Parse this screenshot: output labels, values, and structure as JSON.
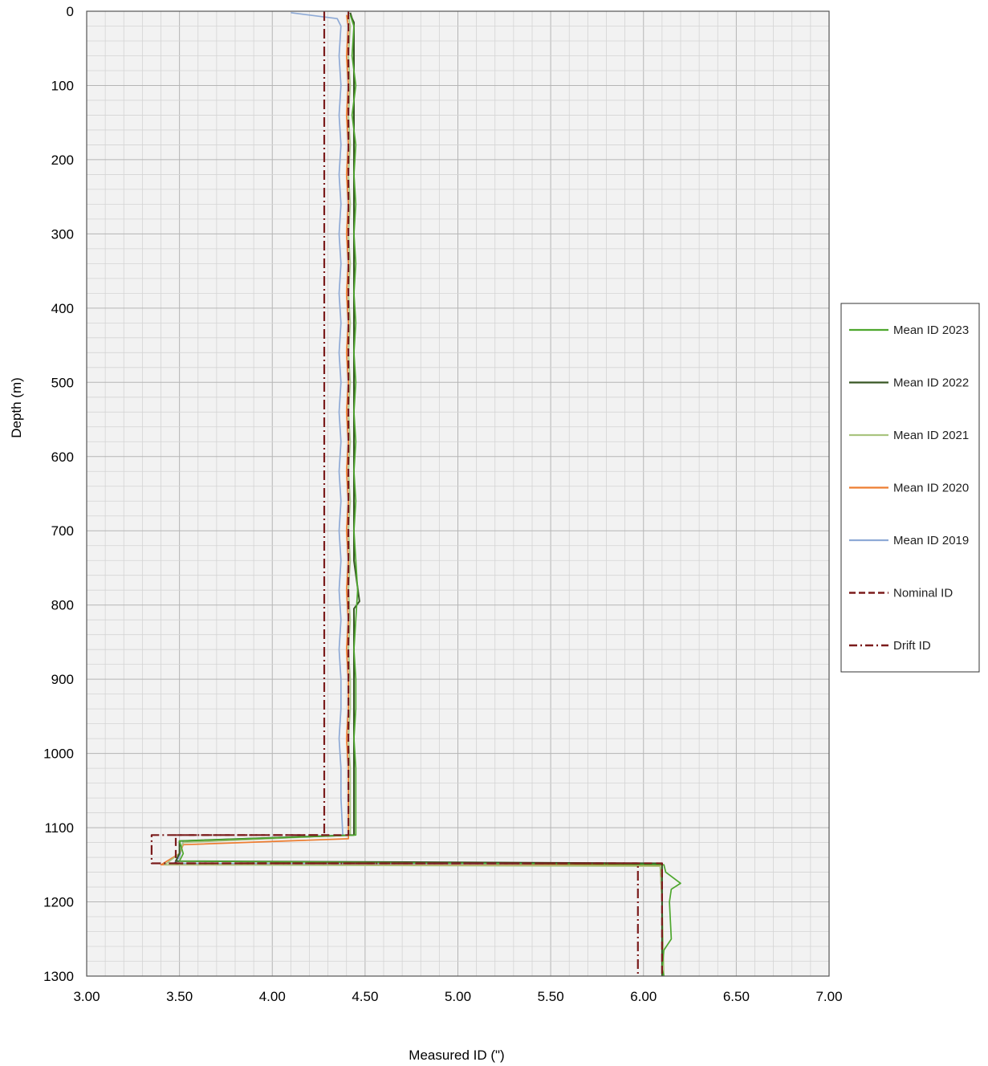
{
  "chart_data": {
    "type": "line",
    "title": "",
    "xlabel": "Measured ID (\")",
    "ylabel": "Depth (m)",
    "xlim": [
      3.0,
      7.0
    ],
    "ylim": [
      0,
      1300
    ],
    "y_inverted": true,
    "grid": true,
    "legend_position": "right",
    "x_ticks": [
      "3.00",
      "3.50",
      "4.00",
      "4.50",
      "5.00",
      "5.50",
      "6.00",
      "6.50",
      "7.00"
    ],
    "y_ticks": [
      "0",
      "100",
      "200",
      "300",
      "400",
      "500",
      "600",
      "700",
      "800",
      "900",
      "1000",
      "1100",
      "1200",
      "1300"
    ],
    "series": [
      {
        "name": "Mean ID 2023",
        "color": "#4ea72e",
        "style": "solid",
        "points": [
          [
            4.42,
            5
          ],
          [
            4.44,
            20
          ],
          [
            4.43,
            60
          ],
          [
            4.45,
            100
          ],
          [
            4.43,
            140
          ],
          [
            4.45,
            180
          ],
          [
            4.44,
            220
          ],
          [
            4.45,
            260
          ],
          [
            4.44,
            300
          ],
          [
            4.45,
            340
          ],
          [
            4.44,
            380
          ],
          [
            4.45,
            420
          ],
          [
            4.44,
            460
          ],
          [
            4.45,
            500
          ],
          [
            4.44,
            540
          ],
          [
            4.45,
            580
          ],
          [
            4.44,
            620
          ],
          [
            4.45,
            660
          ],
          [
            4.44,
            700
          ],
          [
            4.45,
            740
          ],
          [
            4.46,
            780
          ],
          [
            4.45,
            820
          ],
          [
            4.44,
            860
          ],
          [
            4.45,
            900
          ],
          [
            4.45,
            940
          ],
          [
            4.44,
            980
          ],
          [
            4.45,
            1020
          ],
          [
            4.45,
            1060
          ],
          [
            4.45,
            1110
          ],
          [
            3.5,
            1118
          ],
          [
            3.52,
            1135
          ],
          [
            3.5,
            1145
          ],
          [
            6.11,
            1150
          ],
          [
            6.12,
            1160
          ],
          [
            6.2,
            1175
          ],
          [
            6.15,
            1183
          ],
          [
            6.14,
            1200
          ],
          [
            6.15,
            1250
          ],
          [
            6.11,
            1265
          ],
          [
            6.1,
            1290
          ],
          [
            6.11,
            1300
          ]
        ]
      },
      {
        "name": "Mean ID 2022",
        "color": "#375623",
        "style": "solid",
        "points": [
          [
            4.42,
            2
          ],
          [
            4.43,
            10
          ],
          [
            4.44,
            15
          ],
          [
            4.44,
            60
          ],
          [
            4.44,
            100
          ],
          [
            4.44,
            140
          ],
          [
            4.44,
            180
          ],
          [
            4.44,
            220
          ],
          [
            4.44,
            260
          ],
          [
            4.44,
            300
          ],
          [
            4.44,
            340
          ],
          [
            4.44,
            380
          ],
          [
            4.44,
            420
          ],
          [
            4.44,
            460
          ],
          [
            4.44,
            500
          ],
          [
            4.44,
            540
          ],
          [
            4.44,
            580
          ],
          [
            4.44,
            620
          ],
          [
            4.44,
            660
          ],
          [
            4.44,
            700
          ],
          [
            4.44,
            740
          ],
          [
            4.47,
            795
          ],
          [
            4.44,
            805
          ],
          [
            4.44,
            860
          ],
          [
            4.44,
            900
          ],
          [
            4.44,
            940
          ],
          [
            4.44,
            980
          ],
          [
            4.44,
            1020
          ],
          [
            4.44,
            1060
          ],
          [
            4.44,
            1110
          ],
          [
            3.5,
            1118
          ],
          [
            3.5,
            1135
          ],
          [
            3.48,
            1145
          ],
          [
            6.1,
            1148
          ],
          [
            6.1,
            1200
          ],
          [
            6.1,
            1300
          ]
        ]
      },
      {
        "name": "Mean ID 2021",
        "color": "#a9c47f",
        "style": "solid",
        "points": [
          [
            4.41,
            5
          ],
          [
            4.42,
            20
          ],
          [
            4.41,
            60
          ],
          [
            4.42,
            100
          ],
          [
            4.41,
            140
          ],
          [
            4.42,
            180
          ],
          [
            4.41,
            220
          ],
          [
            4.42,
            260
          ],
          [
            4.41,
            300
          ],
          [
            4.42,
            340
          ],
          [
            4.41,
            380
          ],
          [
            4.42,
            420
          ],
          [
            4.41,
            460
          ],
          [
            4.42,
            500
          ],
          [
            4.41,
            540
          ],
          [
            4.42,
            580
          ],
          [
            4.41,
            620
          ],
          [
            4.42,
            660
          ],
          [
            4.41,
            700
          ],
          [
            4.42,
            740
          ],
          [
            4.41,
            780
          ],
          [
            4.42,
            820
          ],
          [
            4.41,
            860
          ],
          [
            4.42,
            900
          ],
          [
            4.42,
            940
          ],
          [
            4.41,
            980
          ],
          [
            4.42,
            1020
          ],
          [
            4.42,
            1060
          ],
          [
            4.42,
            1110
          ],
          [
            3.52,
            1120
          ],
          [
            3.5,
            1135
          ],
          [
            3.42,
            1150
          ],
          [
            6.09,
            1152
          ],
          [
            6.1,
            1200
          ],
          [
            6.11,
            1300
          ]
        ]
      },
      {
        "name": "Mean ID 2020",
        "color": "#ed7d31",
        "style": "solid",
        "points": [
          [
            4.4,
            5
          ],
          [
            4.41,
            20
          ],
          [
            4.4,
            60
          ],
          [
            4.41,
            100
          ],
          [
            4.4,
            140
          ],
          [
            4.41,
            180
          ],
          [
            4.4,
            220
          ],
          [
            4.41,
            260
          ],
          [
            4.4,
            300
          ],
          [
            4.41,
            340
          ],
          [
            4.4,
            380
          ],
          [
            4.41,
            420
          ],
          [
            4.4,
            460
          ],
          [
            4.41,
            500
          ],
          [
            4.4,
            540
          ],
          [
            4.41,
            580
          ],
          [
            4.4,
            620
          ],
          [
            4.41,
            660
          ],
          [
            4.4,
            700
          ],
          [
            4.41,
            740
          ],
          [
            4.4,
            780
          ],
          [
            4.41,
            820
          ],
          [
            4.4,
            860
          ],
          [
            4.41,
            900
          ],
          [
            4.41,
            940
          ],
          [
            4.4,
            980
          ],
          [
            4.41,
            1020
          ],
          [
            4.41,
            1060
          ],
          [
            4.41,
            1115
          ],
          [
            3.52,
            1123
          ],
          [
            3.5,
            1135
          ],
          [
            3.4,
            1150
          ],
          [
            6.09,
            1151
          ],
          [
            6.1,
            1200
          ],
          [
            6.1,
            1300
          ]
        ]
      },
      {
        "name": "Mean ID 2019",
        "color": "#8eaad6",
        "style": "solid",
        "points": [
          [
            4.1,
            2
          ],
          [
            4.35,
            10
          ],
          [
            4.37,
            20
          ],
          [
            4.36,
            60
          ],
          [
            4.37,
            100
          ],
          [
            4.36,
            140
          ],
          [
            4.37,
            180
          ],
          [
            4.36,
            220
          ],
          [
            4.37,
            260
          ],
          [
            4.36,
            300
          ],
          [
            4.37,
            340
          ],
          [
            4.36,
            380
          ],
          [
            4.37,
            420
          ],
          [
            4.36,
            460
          ],
          [
            4.37,
            500
          ],
          [
            4.36,
            540
          ],
          [
            4.37,
            580
          ],
          [
            4.36,
            620
          ],
          [
            4.37,
            660
          ],
          [
            4.36,
            700
          ],
          [
            4.37,
            740
          ],
          [
            4.36,
            780
          ],
          [
            4.37,
            820
          ],
          [
            4.36,
            860
          ],
          [
            4.37,
            900
          ],
          [
            4.37,
            940
          ],
          [
            4.36,
            980
          ],
          [
            4.37,
            1020
          ],
          [
            4.37,
            1060
          ],
          [
            4.38,
            1110
          ],
          [
            3.52,
            1118
          ],
          [
            3.5,
            1140
          ],
          [
            3.47,
            1148
          ],
          [
            6.09,
            1150
          ],
          [
            6.1,
            1200
          ],
          [
            6.1,
            1300
          ]
        ]
      },
      {
        "name": "Nominal ID",
        "color": "#7b1c1c",
        "style": "dashed",
        "points": [
          [
            4.41,
            0
          ],
          [
            4.41,
            1110
          ],
          [
            3.48,
            1110
          ],
          [
            3.48,
            1148
          ],
          [
            6.1,
            1148
          ],
          [
            6.1,
            1300
          ]
        ]
      },
      {
        "name": "Drift ID",
        "color": "#7b1c1c",
        "style": "dashdot",
        "points": [
          [
            4.28,
            0
          ],
          [
            4.28,
            1110
          ],
          [
            3.35,
            1110
          ],
          [
            3.35,
            1148
          ],
          [
            5.97,
            1148
          ],
          [
            5.97,
            1300
          ]
        ]
      }
    ]
  }
}
